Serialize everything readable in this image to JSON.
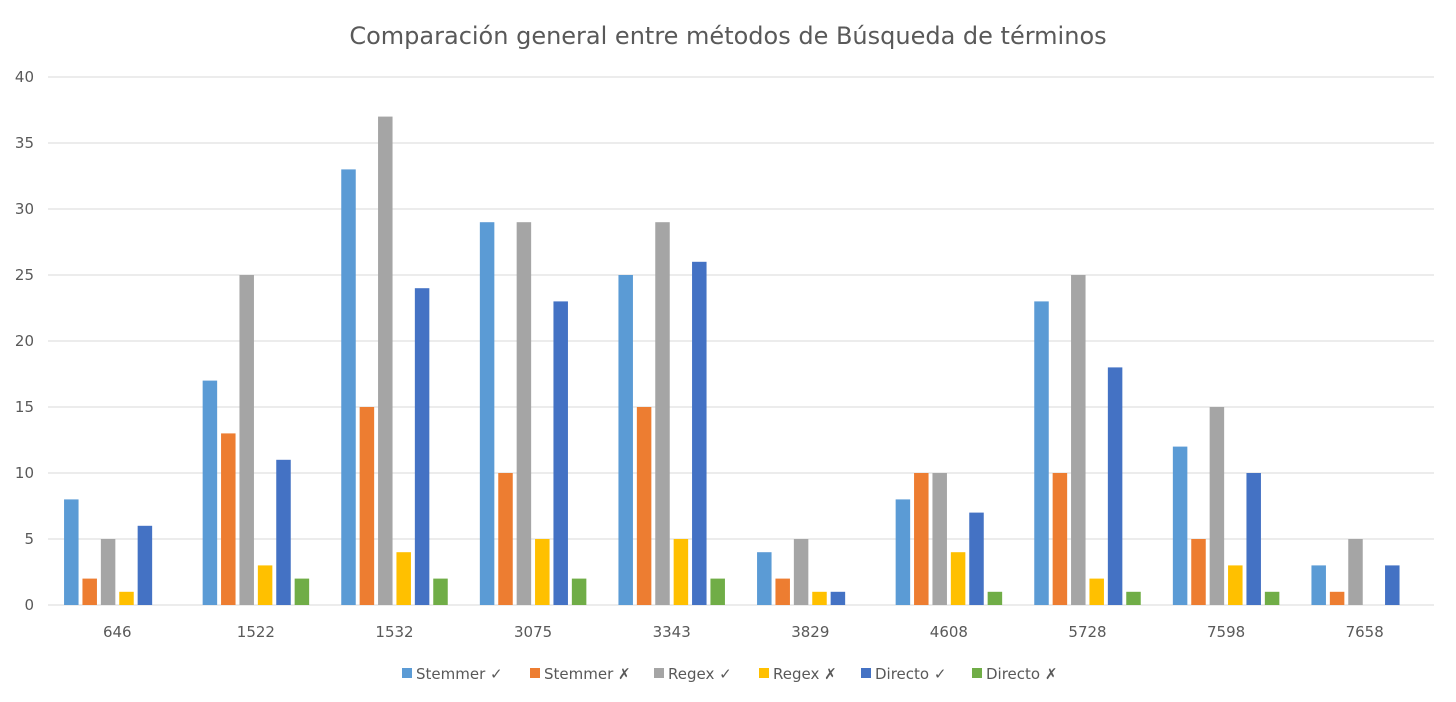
{
  "chart_data": {
    "type": "bar",
    "title": "Comparación general entre métodos de Búsqueda de términos",
    "xlabel": "",
    "ylabel": "",
    "ylim": [
      0,
      40
    ],
    "yticks": [
      "0",
      "5",
      "10",
      "15",
      "20",
      "25",
      "30",
      "35",
      "40"
    ],
    "grid": true,
    "legend_position": "bottom",
    "categories": [
      "646",
      "1522",
      "1532",
      "3075",
      "3343",
      "3829",
      "4608",
      "5728",
      "7598",
      "7658"
    ],
    "series": [
      {
        "name": "Stemmer ✓",
        "color": "#5b9bd5",
        "values": [
          8,
          17,
          33,
          29,
          25,
          4,
          8,
          23,
          12,
          3
        ]
      },
      {
        "name": "Stemmer ✗",
        "color": "#ed7d31",
        "values": [
          2,
          13,
          15,
          10,
          15,
          2,
          10,
          10,
          5,
          1
        ]
      },
      {
        "name": "Regex ✓",
        "color": "#a5a5a5",
        "values": [
          5,
          25,
          37,
          29,
          29,
          5,
          10,
          25,
          15,
          5
        ]
      },
      {
        "name": "Regex ✗",
        "color": "#ffc000",
        "values": [
          1,
          3,
          4,
          5,
          5,
          1,
          4,
          2,
          3,
          0
        ]
      },
      {
        "name": "Directo ✓",
        "color": "#4472c4",
        "values": [
          6,
          11,
          24,
          23,
          26,
          1,
          7,
          18,
          10,
          3
        ]
      },
      {
        "name": "Directo ✗",
        "color": "#70ad47",
        "values": [
          0,
          2,
          2,
          2,
          2,
          0,
          1,
          1,
          1,
          0
        ]
      }
    ]
  }
}
